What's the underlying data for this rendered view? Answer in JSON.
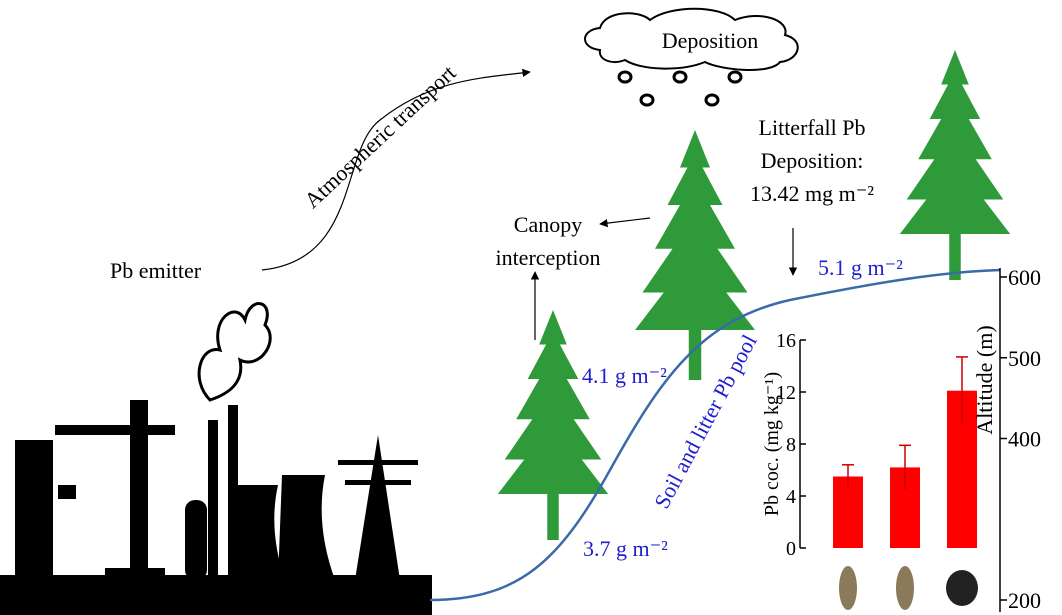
{
  "labels": {
    "emitter": "Pb emitter",
    "transport": "Atmospheric transport",
    "deposition": "Deposition",
    "canopy": [
      "Canopy",
      "interception"
    ],
    "litterfall": [
      "Litterfall Pb",
      "Deposition:",
      "13.42 mg m⁻²"
    ],
    "pool": "Soil and litter Pb pool",
    "pool_values": [
      "3.7 g m⁻²",
      "4.1 g m⁻²",
      "5.1 g m⁻²"
    ]
  },
  "chart_data": {
    "type": "bar",
    "ylabel": "Pb coc. (mg kg⁻¹)",
    "values": [
      5.5,
      6.2,
      12.1
    ],
    "errors": [
      0.9,
      1.7,
      2.6
    ],
    "color": "#ff0000",
    "ylim": [
      0,
      16
    ],
    "yticks": [
      0,
      4,
      8,
      12,
      16
    ],
    "y2label": "Altitude (m)",
    "y2lim": [
      200,
      600
    ],
    "y2ticks": [
      200,
      400,
      500,
      600
    ]
  }
}
